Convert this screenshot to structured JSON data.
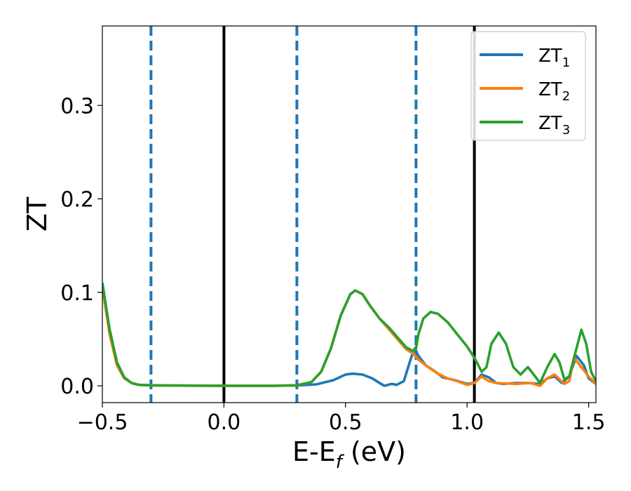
{
  "chart_data": {
    "type": "line",
    "xlabel_main": "E-E",
    "xlabel_sub": "f",
    "xlabel_tail": " (eV)",
    "ylabel": "ZT",
    "xlim": [
      -0.5,
      1.53
    ],
    "ylim": [
      -0.018,
      0.385
    ],
    "xticks": [
      -0.5,
      0.0,
      0.5,
      1.0,
      1.5
    ],
    "xtick_labels": [
      "−0.5",
      "0.0",
      "0.5",
      "1.0",
      "1.5"
    ],
    "yticks": [
      0.0,
      0.1,
      0.2,
      0.3
    ],
    "ytick_labels": [
      "0.0",
      "0.1",
      "0.2",
      "0.3"
    ],
    "grid": false,
    "legend_position": "top-right",
    "vlines_solid": [
      0.0,
      1.03
    ],
    "vlines_dashed": [
      -0.3,
      0.3,
      0.79
    ],
    "series": [
      {
        "name": "ZT",
        "sub": "1",
        "color": "#1f77b4",
        "points": [
          [
            -0.5,
            0.11
          ],
          [
            -0.47,
            0.06
          ],
          [
            -0.44,
            0.025
          ],
          [
            -0.41,
            0.009
          ],
          [
            -0.38,
            0.003
          ],
          [
            -0.35,
            0.001
          ],
          [
            -0.3,
            0.0005
          ],
          [
            -0.2,
            0.0002
          ],
          [
            0.0,
            0.0
          ],
          [
            0.2,
            0.0
          ],
          [
            0.3,
            0.0003
          ],
          [
            0.38,
            0.0015
          ],
          [
            0.45,
            0.006
          ],
          [
            0.5,
            0.012
          ],
          [
            0.53,
            0.013
          ],
          [
            0.57,
            0.012
          ],
          [
            0.61,
            0.008
          ],
          [
            0.64,
            0.003
          ],
          [
            0.66,
            0.0
          ],
          [
            0.69,
            0.002
          ],
          [
            0.71,
            0.001
          ],
          [
            0.74,
            0.005
          ],
          [
            0.77,
            0.03
          ],
          [
            0.785,
            0.04
          ],
          [
            0.8,
            0.032
          ],
          [
            0.83,
            0.022
          ],
          [
            0.87,
            0.015
          ],
          [
            0.9,
            0.009
          ],
          [
            0.95,
            0.006
          ],
          [
            1.0,
            0.002
          ],
          [
            1.03,
            0.003
          ],
          [
            1.06,
            0.012
          ],
          [
            1.09,
            0.009
          ],
          [
            1.12,
            0.003
          ],
          [
            1.15,
            0.002
          ],
          [
            1.2,
            0.003
          ],
          [
            1.25,
            0.003
          ],
          [
            1.3,
            0.002
          ],
          [
            1.33,
            0.008
          ],
          [
            1.36,
            0.01
          ],
          [
            1.39,
            0.003
          ],
          [
            1.42,
            0.01
          ],
          [
            1.45,
            0.032
          ],
          [
            1.48,
            0.022
          ],
          [
            1.5,
            0.008
          ],
          [
            1.53,
            0.002
          ]
        ]
      },
      {
        "name": "ZT",
        "sub": "2",
        "color": "#ff7f0e",
        "points": [
          [
            -0.5,
            0.105
          ],
          [
            -0.47,
            0.055
          ],
          [
            -0.44,
            0.022
          ],
          [
            -0.41,
            0.008
          ],
          [
            -0.38,
            0.003
          ],
          [
            -0.35,
            0.001
          ],
          [
            -0.3,
            0.0005
          ],
          [
            -0.2,
            0.0002
          ],
          [
            0.0,
            0.0
          ],
          [
            0.2,
            0.0
          ],
          [
            0.3,
            0.0005
          ],
          [
            0.36,
            0.004
          ],
          [
            0.4,
            0.015
          ],
          [
            0.44,
            0.04
          ],
          [
            0.48,
            0.075
          ],
          [
            0.52,
            0.098
          ],
          [
            0.54,
            0.102
          ],
          [
            0.57,
            0.098
          ],
          [
            0.6,
            0.086
          ],
          [
            0.64,
            0.072
          ],
          [
            0.68,
            0.06
          ],
          [
            0.72,
            0.048
          ],
          [
            0.75,
            0.039
          ],
          [
            0.78,
            0.034
          ],
          [
            0.8,
            0.028
          ],
          [
            0.84,
            0.02
          ],
          [
            0.88,
            0.013
          ],
          [
            0.92,
            0.008
          ],
          [
            0.96,
            0.005
          ],
          [
            1.0,
            0.001
          ],
          [
            1.03,
            0.003
          ],
          [
            1.06,
            0.01
          ],
          [
            1.09,
            0.005
          ],
          [
            1.12,
            0.003
          ],
          [
            1.2,
            0.002
          ],
          [
            1.26,
            0.003
          ],
          [
            1.3,
            0.0
          ],
          [
            1.33,
            0.008
          ],
          [
            1.36,
            0.012
          ],
          [
            1.4,
            0.002
          ],
          [
            1.42,
            0.005
          ],
          [
            1.44,
            0.03
          ],
          [
            1.47,
            0.02
          ],
          [
            1.5,
            0.01
          ],
          [
            1.53,
            0.002
          ]
        ]
      },
      {
        "name": "ZT",
        "sub": "3",
        "color": "#2ca02c",
        "points": [
          [
            -0.5,
            0.11
          ],
          [
            -0.47,
            0.06
          ],
          [
            -0.44,
            0.025
          ],
          [
            -0.41,
            0.009
          ],
          [
            -0.38,
            0.003
          ],
          [
            -0.35,
            0.001
          ],
          [
            -0.3,
            0.0005
          ],
          [
            -0.2,
            0.0002
          ],
          [
            0.0,
            0.0
          ],
          [
            0.2,
            0.0
          ],
          [
            0.3,
            0.0005
          ],
          [
            0.36,
            0.004
          ],
          [
            0.4,
            0.015
          ],
          [
            0.44,
            0.04
          ],
          [
            0.48,
            0.075
          ],
          [
            0.52,
            0.098
          ],
          [
            0.54,
            0.102
          ],
          [
            0.57,
            0.098
          ],
          [
            0.6,
            0.086
          ],
          [
            0.64,
            0.072
          ],
          [
            0.68,
            0.062
          ],
          [
            0.72,
            0.05
          ],
          [
            0.75,
            0.041
          ],
          [
            0.78,
            0.037
          ],
          [
            0.79,
            0.04
          ],
          [
            0.8,
            0.055
          ],
          [
            0.82,
            0.072
          ],
          [
            0.85,
            0.079
          ],
          [
            0.88,
            0.077
          ],
          [
            0.92,
            0.068
          ],
          [
            0.96,
            0.055
          ],
          [
            1.0,
            0.042
          ],
          [
            1.03,
            0.03
          ],
          [
            1.06,
            0.015
          ],
          [
            1.08,
            0.02
          ],
          [
            1.1,
            0.045
          ],
          [
            1.13,
            0.057
          ],
          [
            1.16,
            0.045
          ],
          [
            1.19,
            0.02
          ],
          [
            1.22,
            0.012
          ],
          [
            1.25,
            0.02
          ],
          [
            1.28,
            0.01
          ],
          [
            1.3,
            0.003
          ],
          [
            1.33,
            0.02
          ],
          [
            1.36,
            0.034
          ],
          [
            1.38,
            0.025
          ],
          [
            1.4,
            0.007
          ],
          [
            1.42,
            0.01
          ],
          [
            1.44,
            0.03
          ],
          [
            1.47,
            0.06
          ],
          [
            1.49,
            0.045
          ],
          [
            1.51,
            0.015
          ],
          [
            1.53,
            0.005
          ]
        ]
      }
    ]
  }
}
